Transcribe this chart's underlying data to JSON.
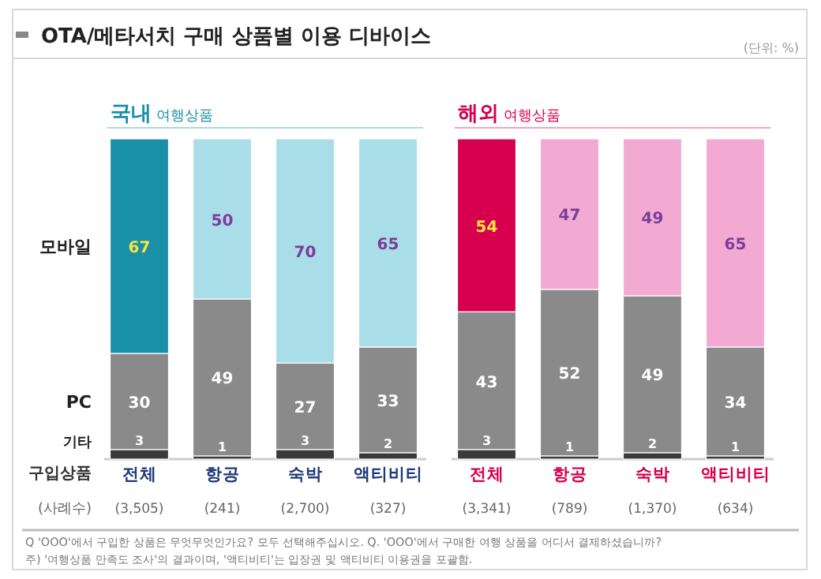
{
  "chart_data": [
    {
      "type": "bar",
      "stacked": true,
      "data_labels": true,
      "title": "OTA/메타서치 구매 상품별 이용 디바이스",
      "subtitle": "**국내** 여행상품",
      "categories": [
        "전체\n(3,505)",
        "항공\n(241)",
        "숙박\n(2,700)",
        "액티비티\n(327)"
      ],
      "series": [
        {
          "name": "기타",
          "color": "#3a3a3a",
          "values": [
            3,
            1,
            3,
            2
          ]
        },
        {
          "name": "PC",
          "color": "#8a8a8a",
          "values": [
            30,
            49,
            27,
            33
          ]
        },
        {
          "name": "모바일",
          "colors": [
            "#1a8fa8",
            "#a9dde8",
            "#a9dde8",
            "#a9dde8"
          ],
          "values": [
            67,
            50,
            70,
            65
          ]
        }
      ],
      "annotations": [
        "(단위: %)",
        "구입상품",
        "(사례수)",
        "Q 'OOO'에서  구입한 상품은 무엇무엇인가요? 모두 선택해주십시오. Q. 'OOO'에서  구매한 여행 상품을 어디서 결제하셨습니까?",
        "주) '여행상품 만족도 조사'의 결과이며, '액티비티'는 입장권 및 액티비티 이용권을 포괄함."
      ]
    },
    {
      "type": "bar",
      "stacked": true,
      "data_labels": true,
      "subtitle": "**해외** 여행상품",
      "categories": [
        "전체\n(3,341)",
        "항공\n(789)",
        "숙박\n(1,370)",
        "액티비티\n(634)"
      ],
      "series": [
        {
          "color": "#3a3a3a",
          "values": [
            3,
            1,
            2,
            1
          ]
        },
        {
          "color": "#8a8a8a",
          "values": [
            43,
            52,
            49,
            34
          ]
        },
        {
          "colors": [
            "#d6004f",
            "#f2a9d2",
            "#f2a9d2",
            "#f2a9d2"
          ],
          "values": [
            54,
            47,
            49,
            65
          ]
        }
      ]
    }
  ]
}
